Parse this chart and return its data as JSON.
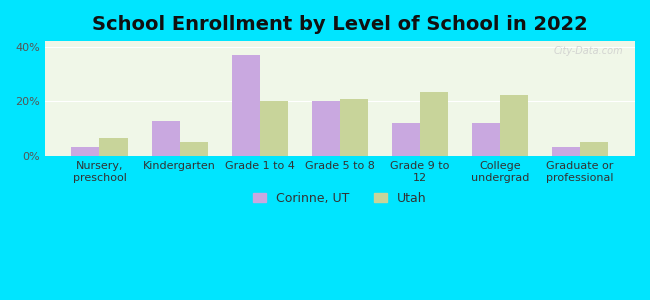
{
  "title": "School Enrollment by Level of School in 2022",
  "categories": [
    "Nursery,\npreschool",
    "Kindergarten",
    "Grade 1 to 4",
    "Grade 5 to 8",
    "Grade 9 to\n12",
    "College\nundergrad",
    "Graduate or\nprofessional"
  ],
  "corinne_values": [
    3.5,
    13,
    37,
    20,
    12,
    12,
    3.5
  ],
  "utah_values": [
    6.5,
    5,
    20,
    21,
    23.5,
    22.5,
    5
  ],
  "corinne_color": "#c9a8e0",
  "utah_color": "#c8d49a",
  "background_outer": "#00e5ff",
  "background_inner": "#f0f7e8",
  "ylim": [
    0,
    42
  ],
  "yticks": [
    0,
    20,
    40
  ],
  "ytick_labels": [
    "0%",
    "20%",
    "40%"
  ],
  "legend_label_corinne": "Corinne, UT",
  "legend_label_utah": "Utah",
  "bar_width": 0.35,
  "title_fontsize": 14,
  "tick_fontsize": 8,
  "legend_fontsize": 9,
  "watermark": "City-Data.com"
}
